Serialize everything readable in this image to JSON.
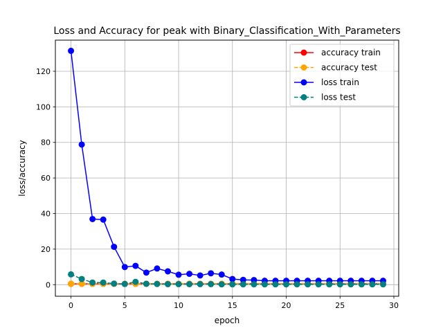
{
  "chart_data": {
    "type": "line",
    "title": "Loss and Accuracy for peak with Binary_Classification_With_Parameters",
    "xlabel": "epoch",
    "ylabel": "loss/accuracy",
    "xlim": [
      -1.45,
      30.45
    ],
    "ylim": [
      -6.5,
      137.5
    ],
    "xticks": [
      0,
      5,
      10,
      15,
      20,
      25,
      30
    ],
    "yticks": [
      0,
      20,
      40,
      60,
      80,
      100,
      120
    ],
    "grid": true,
    "legend_position": "top-right",
    "x": [
      0,
      1,
      2,
      3,
      4,
      5,
      6,
      7,
      8,
      9,
      10,
      11,
      12,
      13,
      14,
      15,
      16,
      17,
      18,
      19,
      20,
      21,
      22,
      23,
      24,
      25,
      26,
      27,
      28,
      29
    ],
    "series": [
      {
        "name": "accuracy train",
        "color": "#ff0000",
        "linestyle": "solid",
        "values": [
          0.5,
          0.5,
          0.5,
          0.5,
          0.5,
          0.5,
          0.5,
          0.5,
          0.5,
          0.5,
          0.5,
          0.5,
          0.5,
          0.5,
          0.5,
          0.5,
          0.5,
          0.5,
          0.5,
          0.5,
          0.5,
          0.5,
          0.5,
          0.5,
          0.5,
          0.5,
          0.5,
          0.5,
          0.5,
          0.5
        ]
      },
      {
        "name": "accuracy test",
        "color": "#ffa500",
        "linestyle": "dashed",
        "values": [
          0.5,
          0.5,
          0.5,
          0.5,
          0.5,
          0.5,
          0.5,
          0.5,
          0.5,
          0.5,
          0.5,
          0.5,
          0.5,
          0.5,
          0.5,
          0.5,
          0.5,
          0.5,
          0.5,
          0.5,
          0.5,
          0.5,
          0.5,
          0.5,
          0.5,
          0.5,
          0.5,
          0.5,
          0.5,
          0.5
        ]
      },
      {
        "name": "loss train",
        "color": "#0000ff",
        "linestyle": "solid",
        "values": [
          131.5,
          78.8,
          36.9,
          36.6,
          21.3,
          9.9,
          10.6,
          6.8,
          9.1,
          7.5,
          5.6,
          6.1,
          5.2,
          6.4,
          5.7,
          3.2,
          2.7,
          2.6,
          2.2,
          2.2,
          2.2,
          2.2,
          2.2,
          2.2,
          2.2,
          2.2,
          2.2,
          2.2,
          2.2,
          2.2
        ]
      },
      {
        "name": "loss test",
        "color": "#008080",
        "linestyle": "dashed",
        "values": [
          5.8,
          3.2,
          1.2,
          1.2,
          0.6,
          0.4,
          1.6,
          0.5,
          0.4,
          0.3,
          0.3,
          0.3,
          0.3,
          0.3,
          0.2,
          0.2,
          0.2,
          0.2,
          0.2,
          0.2,
          0.2,
          0.2,
          0.2,
          0.2,
          0.2,
          0.2,
          0.2,
          0.2,
          0.2,
          0.2
        ]
      }
    ]
  }
}
